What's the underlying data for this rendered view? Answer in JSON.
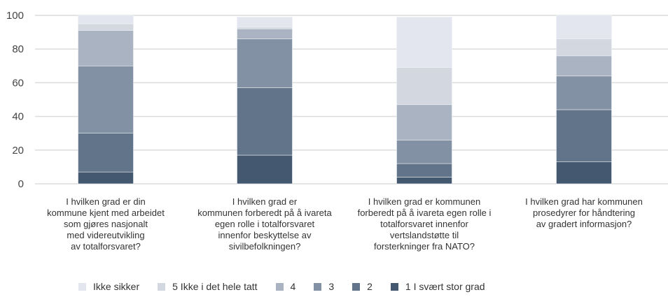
{
  "chart_data": {
    "type": "bar",
    "stacked": true,
    "categories": [
      "I hvilken grad er din kommune kjent med arbeidet som gjøres nasjonalt med videreutvikling av totalforsvaret?",
      "I hvilken grad er kommunen forberedt på å ivareta egen rolle i totalforsvaret innenfor beskyttelse av sivilbefolkningen?",
      "I hvilken grad er kommunen forberedt på å ivareta egen rolle i totalforsvaret innenfor vertslandstøtte til forsterkninger fra NATO?",
      "I hvilken grad har kommunen prosedyrer for håndtering av gradert informasjon?"
    ],
    "category_lines": [
      [
        "I hvilken grad er din",
        "kommune kjent med arbeidet",
        "som gjøres nasjonalt",
        "med videreutvikling",
        "av totalforsvaret?"
      ],
      [
        "I hvilken grad er",
        "kommunen forberedt på å ivareta",
        "egen rolle i totalforsvaret",
        "innenfor beskyttelse av",
        "sivilbefolkningen?"
      ],
      [
        "I hvilken grad er kommunen",
        "forberedt på å ivareta egen rolle i",
        "totalforsvaret innenfor",
        "vertslandstøtte til",
        "forsterkninger fra NATO?"
      ],
      [
        "I hvilken grad har kommunen",
        "prosedyrer for håndtering",
        "av gradert informasjon?"
      ]
    ],
    "series": [
      {
        "name": "1  I svært stor grad",
        "color": "#44596f",
        "values": [
          7,
          17,
          4,
          13
        ]
      },
      {
        "name": "2",
        "color": "#627489",
        "values": [
          23,
          40,
          8,
          31
        ]
      },
      {
        "name": "3",
        "color": "#8391a4",
        "values": [
          40,
          29,
          14,
          20
        ]
      },
      {
        "name": "4",
        "color": "#aab3c1",
        "values": [
          21,
          6,
          21,
          12
        ]
      },
      {
        "name": "5  Ikke i det hele tatt",
        "color": "#d2d7e0",
        "values": [
          4,
          1,
          22,
          10
        ]
      },
      {
        "name": "Ikke sikker",
        "color": "#e3e6ee",
        "values": [
          5,
          6,
          30,
          14
        ]
      }
    ],
    "legend_order": [
      5,
      4,
      3,
      2,
      1,
      0
    ],
    "yticks": [
      "0",
      "20",
      "40",
      "60",
      "80",
      "100"
    ],
    "ylim": [
      0,
      100
    ],
    "grid": true,
    "legend_position": "bottom",
    "title": "",
    "xlabel": "",
    "ylabel": ""
  }
}
